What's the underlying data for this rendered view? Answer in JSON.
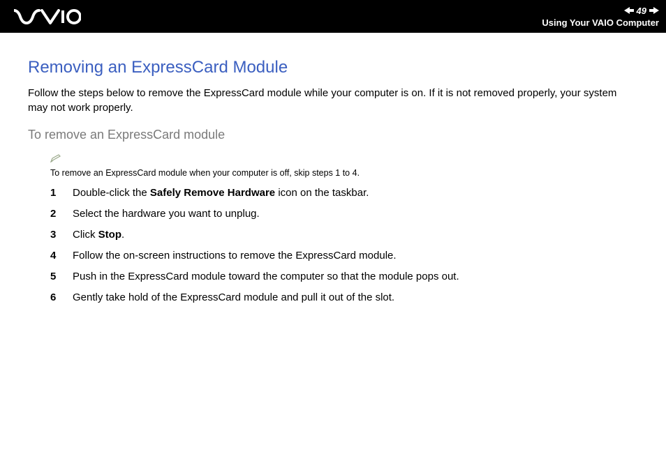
{
  "header": {
    "page_number": "49",
    "section_label": "Using Your VAIO Computer"
  },
  "content": {
    "title": "Removing an ExpressCard Module",
    "intro": "Follow the steps below to remove the ExpressCard module while your computer is on. If it is not removed properly, your system may not work properly.",
    "subheading": "To remove an ExpressCard module",
    "note": "To remove an ExpressCard module when your computer is off, skip steps 1 to 4.",
    "steps": [
      {
        "num": "1",
        "pre": "Double-click the ",
        "bold": "Safely Remove Hardware",
        "post": " icon on the taskbar."
      },
      {
        "num": "2",
        "pre": "Select the hardware you want to unplug.",
        "bold": "",
        "post": ""
      },
      {
        "num": "3",
        "pre": "Click ",
        "bold": "Stop",
        "post": "."
      },
      {
        "num": "4",
        "pre": "Follow the on-screen instructions to remove the ExpressCard module.",
        "bold": "",
        "post": ""
      },
      {
        "num": "5",
        "pre": "Push in the ExpressCard module toward the computer so that the module pops out.",
        "bold": "",
        "post": ""
      },
      {
        "num": "6",
        "pre": "Gently take hold of the ExpressCard module and pull it out of the slot.",
        "bold": "",
        "post": ""
      }
    ]
  },
  "colors": {
    "header_bg": "#000000",
    "title_color": "#3b5fc0",
    "subheading_color": "#7a7a7a",
    "note_icon_color": "#9aa88a",
    "text_color": "#000000",
    "bg": "#ffffff"
  }
}
